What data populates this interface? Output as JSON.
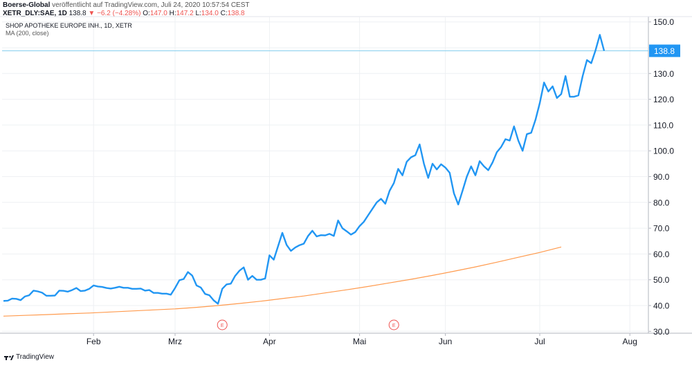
{
  "header": {
    "publisher": "Boerse-Global",
    "published_text": "veröffentlicht auf TradingView.com, Juli 24, 2020 10:57:54 CEST",
    "symbol": "XETR_DLY:SAE, 1D",
    "last": "138.8",
    "change": "−6.2 (−4.28%)",
    "o_label": "O:",
    "o_value": "147.0",
    "h_label": "H:",
    "h_value": "147.2",
    "l_label": "L:",
    "l_value": "134.0",
    "c_label": "C:",
    "c_value": "138.8"
  },
  "legend": {
    "title": "SHOP APOTHEKE EUROPE INH., 1D, XETR",
    "ma": "MA (200, close)"
  },
  "footer": {
    "brand": "TradingView"
  },
  "colors": {
    "price": "#2196f3",
    "ma": "#ff9a4d",
    "grid": "#eef0f3",
    "last_line": "#87cfee",
    "events": "#ef5350"
  },
  "chart_data": {
    "type": "line",
    "x_ticks": [
      "Feb",
      "Mrz",
      "Apr",
      "Mai",
      "Jun",
      "Jul",
      "Aug"
    ],
    "y_ticks": [
      30,
      40,
      50,
      60,
      70,
      80,
      90,
      100,
      110,
      120,
      130,
      140,
      150
    ],
    "ylim": [
      30,
      150
    ],
    "last_value": 138.8,
    "last_label": "138.8",
    "events": [
      {
        "x": 51,
        "label": "E"
      },
      {
        "x": 91,
        "label": "E"
      }
    ],
    "series": [
      {
        "values": [
          41.8,
          41.9,
          42.7,
          42.6,
          42.1,
          43.5,
          44.0,
          45.8,
          45.5,
          45.0,
          43.8,
          43.8,
          43.9,
          45.8,
          45.7,
          45.4,
          46.0,
          46.8,
          45.6,
          45.8,
          46.5,
          47.8,
          47.4,
          47.2,
          46.8,
          46.6,
          46.9,
          47.3,
          46.9,
          46.9,
          46.5,
          46.5,
          46.6,
          45.8,
          46.0,
          44.9,
          44.9,
          44.6,
          44.6,
          44.2,
          46.8,
          49.8,
          50.3,
          53.0,
          51.6,
          47.8,
          47.0,
          44.5,
          44.0,
          42.0,
          40.7,
          46.5,
          48.2,
          48.5,
          51.5,
          53.5,
          54.8,
          50.0,
          51.5,
          50.0,
          50.0,
          50.5,
          59.5,
          57.8,
          63.0,
          68.2,
          63.5,
          61.2,
          62.5,
          63.4,
          64.0,
          67.0,
          69.0,
          66.8,
          67.3,
          67.2,
          67.8,
          67.0,
          73.0,
          70.0,
          68.8,
          67.5,
          68.5,
          70.8,
          72.5,
          75.0,
          77.5,
          80.0,
          81.4,
          79.5,
          84.5,
          87.5,
          93.0,
          90.5,
          95.8,
          97.5,
          98.3,
          102.5,
          95.0,
          89.5,
          95.0,
          92.8,
          94.8,
          93.5,
          91.5,
          83.5,
          79.2,
          84.5,
          90.0,
          94.0,
          90.5,
          96.0,
          94.0,
          92.5,
          95.5,
          99.5,
          101.5,
          104.5,
          104.0,
          109.5,
          104.0,
          100.0,
          106.5,
          107.0,
          112.0,
          118.5,
          126.5,
          123.0,
          125.0,
          120.5,
          122.0,
          129.0,
          121.0,
          121.0,
          121.5,
          129.0,
          135.2,
          134.0,
          139.0,
          145.0,
          138.8
        ]
      },
      {
        "name": "MA (200, close)",
        "start_index": 0,
        "values": [
          35.9,
          36.2,
          36.5,
          36.8,
          37.1,
          37.5,
          37.9,
          38.3,
          38.7,
          39.3,
          40.0,
          40.8,
          41.7,
          42.7,
          43.7,
          44.9,
          46.1,
          47.4,
          48.8,
          50.2,
          51.7,
          53.3,
          55.0,
          56.8,
          58.7,
          60.6,
          62.7
        ]
      }
    ]
  }
}
